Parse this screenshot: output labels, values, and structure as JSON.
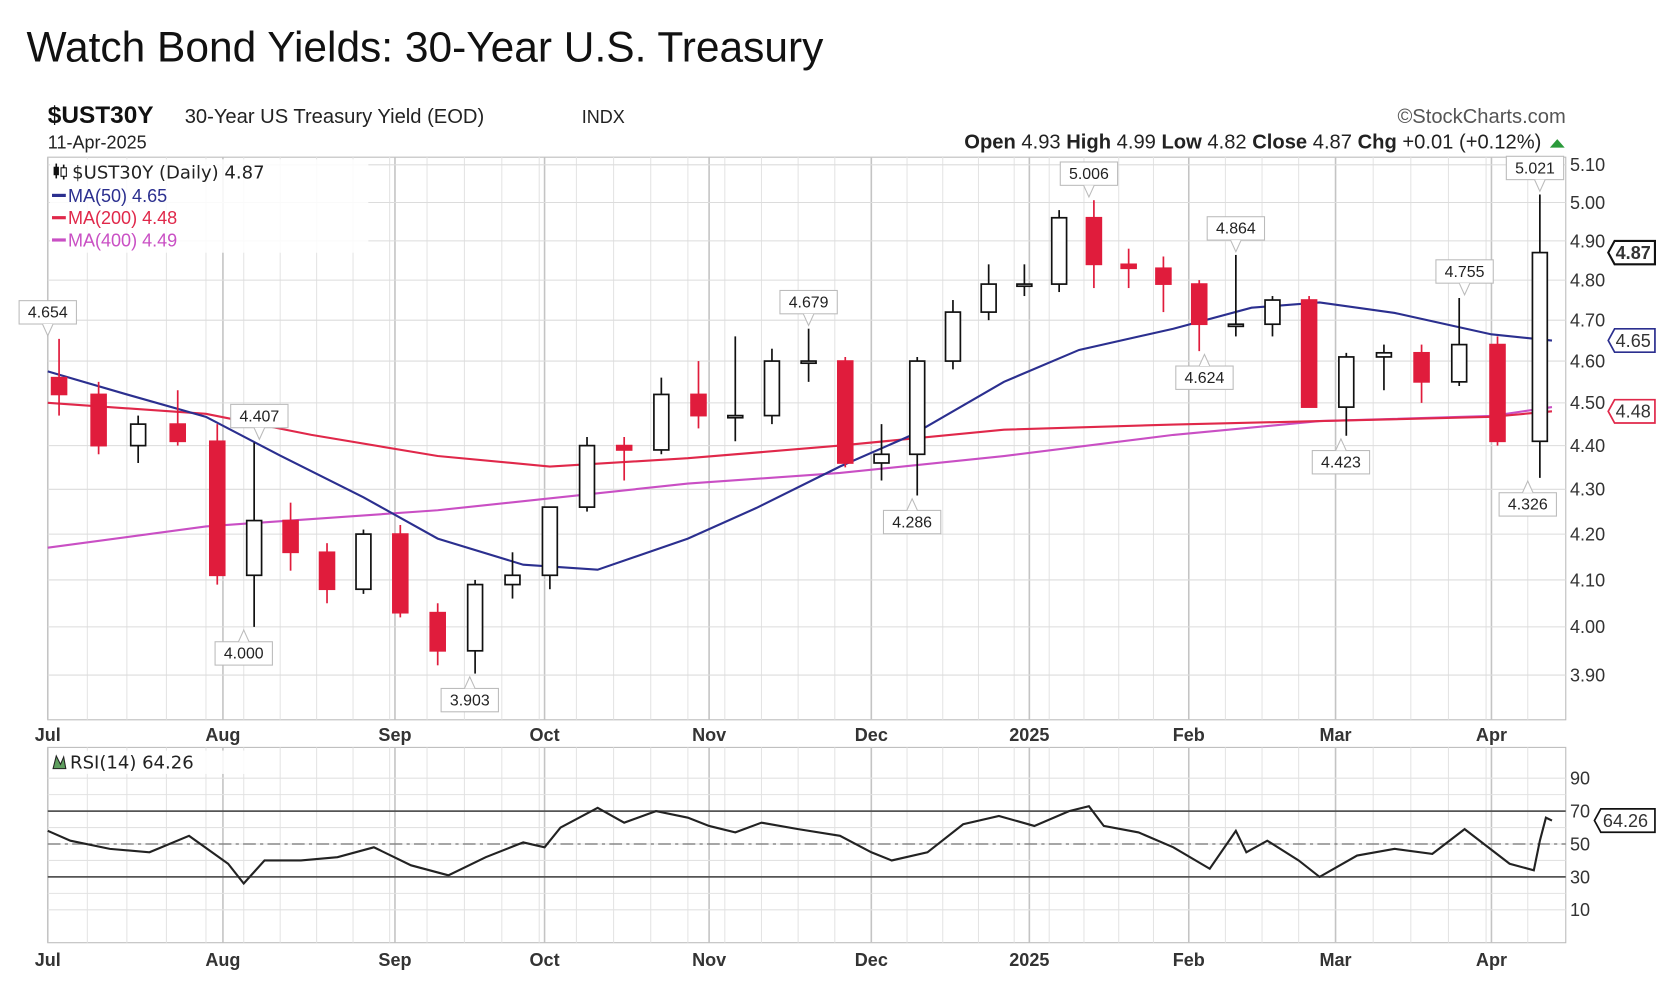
{
  "title": "Watch Bond Yields: 30-Year U.S. Treasury",
  "header": {
    "symbol": "$UST30Y",
    "description": "30-Year US Treasury Yield (EOD)",
    "exchange": "INDX",
    "date": "11-Apr-2025",
    "watermark": "©StockCharts.com",
    "ohlc": {
      "open_label": "Open",
      "open": "4.93",
      "high_label": "High",
      "high": "4.99",
      "low_label": "Low",
      "low": "4.82",
      "close_label": "Close",
      "close": "4.87",
      "chg_label": "Chg",
      "chg": "+0.01 (+0.12%)",
      "direction": "up"
    }
  },
  "legend": {
    "price": "$UST30Y (Daily) 4.87",
    "ma50": "MA(50) 4.65",
    "ma200": "MA(200) 4.48",
    "ma400": "MA(400) 4.49",
    "rsi": "RSI(14) 64.26"
  },
  "colors": {
    "up_candle": "#ffffff",
    "down_candle": "#e01c3c",
    "ma50": "#2b2f8f",
    "ma200": "#e0284a",
    "ma400": "#c94fc4",
    "rsi": "#222222",
    "positive_change": "#2a9a3a"
  },
  "chart_data": [
    {
      "type": "candlestick",
      "title": "$UST30Y (Daily)",
      "y_scale": "log",
      "ylim": [
        3.85,
        5.12
      ],
      "grid": true,
      "legend_position": "top-left",
      "yticks": [
        "3.90",
        "4.00",
        "4.10",
        "4.20",
        "4.30",
        "4.40",
        "4.50",
        "4.60",
        "4.70",
        "4.80",
        "4.90",
        "5.00",
        "5.10"
      ],
      "xticks": [
        {
          "date": "2024-07-01",
          "label": "Jul"
        },
        {
          "date": "2024-08-01",
          "label": "Aug"
        },
        {
          "date": "2024-09-03",
          "label": "Sep"
        },
        {
          "date": "2024-10-01",
          "label": "Oct"
        },
        {
          "date": "2024-11-01",
          "label": "Nov"
        },
        {
          "date": "2024-12-02",
          "label": "Dec"
        },
        {
          "date": "2025-01-02",
          "label": "2025"
        },
        {
          "date": "2025-02-03",
          "label": "Feb"
        },
        {
          "date": "2025-03-03",
          "label": "Mar"
        },
        {
          "date": "2025-04-01",
          "label": "Apr"
        }
      ],
      "ohlc_columns": [
        "week_ending",
        "open",
        "high",
        "low",
        "close"
      ],
      "ohlc": [
        [
          "2024-07-05",
          4.56,
          4.654,
          4.47,
          4.52
        ],
        [
          "2024-07-12",
          4.52,
          4.55,
          4.38,
          4.4
        ],
        [
          "2024-07-19",
          4.4,
          4.47,
          4.36,
          4.45
        ],
        [
          "2024-07-26",
          4.45,
          4.53,
          4.4,
          4.41
        ],
        [
          "2024-08-02",
          4.41,
          4.45,
          4.09,
          4.11
        ],
        [
          "2024-08-09",
          4.11,
          4.407,
          4.0,
          4.23
        ],
        [
          "2024-08-16",
          4.23,
          4.27,
          4.12,
          4.16
        ],
        [
          "2024-08-23",
          4.16,
          4.18,
          4.05,
          4.08
        ],
        [
          "2024-08-30",
          4.08,
          4.21,
          4.07,
          4.2
        ],
        [
          "2024-09-06",
          4.2,
          4.22,
          4.02,
          4.03
        ],
        [
          "2024-09-13",
          4.03,
          4.05,
          3.92,
          3.95
        ],
        [
          "2024-09-20",
          3.95,
          4.1,
          3.903,
          4.09
        ],
        [
          "2024-09-27",
          4.09,
          4.16,
          4.06,
          4.11
        ],
        [
          "2024-10-04",
          4.11,
          4.26,
          4.08,
          4.26
        ],
        [
          "2024-10-11",
          4.26,
          4.42,
          4.25,
          4.4
        ],
        [
          "2024-10-18",
          4.4,
          4.42,
          4.32,
          4.39
        ],
        [
          "2024-10-25",
          4.39,
          4.56,
          4.38,
          4.52
        ],
        [
          "2024-11-01",
          4.52,
          4.6,
          4.44,
          4.47
        ],
        [
          "2024-11-08",
          4.47,
          4.66,
          4.41,
          4.47
        ],
        [
          "2024-11-15",
          4.47,
          4.63,
          4.45,
          4.6
        ],
        [
          "2024-11-22",
          4.6,
          4.679,
          4.55,
          4.6
        ],
        [
          "2024-11-29",
          4.6,
          4.61,
          4.35,
          4.36
        ],
        [
          "2024-12-06",
          4.36,
          4.45,
          4.32,
          4.38
        ],
        [
          "2024-12-13",
          4.38,
          4.61,
          4.286,
          4.6
        ],
        [
          "2024-12-20",
          4.6,
          4.75,
          4.58,
          4.72
        ],
        [
          "2024-12-27",
          4.72,
          4.84,
          4.7,
          4.79
        ],
        [
          "2025-01-03",
          4.79,
          4.84,
          4.76,
          4.79
        ],
        [
          "2025-01-10",
          4.79,
          4.98,
          4.77,
          4.96
        ],
        [
          "2025-01-17",
          4.96,
          5.006,
          4.78,
          4.84
        ],
        [
          "2025-01-24",
          4.84,
          4.88,
          4.78,
          4.83
        ],
        [
          "2025-01-31",
          4.83,
          4.86,
          4.72,
          4.79
        ],
        [
          "2025-02-07",
          4.79,
          4.8,
          4.624,
          4.69
        ],
        [
          "2025-02-14",
          4.69,
          4.864,
          4.66,
          4.69
        ],
        [
          "2025-02-21",
          4.69,
          4.76,
          4.66,
          4.75
        ],
        [
          "2025-02-28",
          4.75,
          4.76,
          4.5,
          4.49
        ],
        [
          "2025-03-07",
          4.49,
          4.62,
          4.423,
          4.61
        ],
        [
          "2025-03-14",
          4.61,
          4.64,
          4.53,
          4.62
        ],
        [
          "2025-03-21",
          4.62,
          4.64,
          4.5,
          4.55
        ],
        [
          "2025-03-28",
          4.55,
          4.755,
          4.54,
          4.64
        ],
        [
          "2025-04-04",
          4.64,
          4.66,
          4.4,
          4.41
        ],
        [
          "2025-04-11",
          4.41,
          5.021,
          4.326,
          4.87
        ]
      ],
      "series": [
        {
          "name": "MA(50)",
          "color": "#2b2f8f",
          "points": [
            [
              "2024-07-01",
              4.575
            ],
            [
              "2024-07-15",
              4.52
            ],
            [
              "2024-07-29",
              4.467
            ],
            [
              "2024-08-12",
              4.377
            ],
            [
              "2024-08-28",
              4.282
            ],
            [
              "2024-09-11",
              4.19
            ],
            [
              "2024-09-27",
              4.133
            ],
            [
              "2024-10-11",
              4.122
            ],
            [
              "2024-10-28",
              4.19
            ],
            [
              "2024-11-10",
              4.258
            ],
            [
              "2024-11-26",
              4.352
            ],
            [
              "2024-12-10",
              4.425
            ],
            [
              "2024-12-28",
              4.55
            ],
            [
              "2025-01-12",
              4.627
            ],
            [
              "2025-01-31",
              4.679
            ],
            [
              "2025-02-15",
              4.731
            ],
            [
              "2025-02-28",
              4.744
            ],
            [
              "2025-03-14",
              4.718
            ],
            [
              "2025-04-01",
              4.665
            ],
            [
              "2025-04-11",
              4.65
            ]
          ]
        },
        {
          "name": "MA(200)",
          "color": "#e0284a",
          "points": [
            [
              "2024-07-01",
              4.5
            ],
            [
              "2024-07-29",
              4.474
            ],
            [
              "2024-08-18",
              4.425
            ],
            [
              "2024-09-11",
              4.376
            ],
            [
              "2024-10-02",
              4.352
            ],
            [
              "2024-10-28",
              4.371
            ],
            [
              "2024-11-26",
              4.4
            ],
            [
              "2024-12-28",
              4.437
            ],
            [
              "2025-01-31",
              4.449
            ],
            [
              "2025-02-28",
              4.457
            ],
            [
              "2025-04-01",
              4.467
            ],
            [
              "2025-04-11",
              4.48
            ]
          ]
        },
        {
          "name": "MA(400)",
          "color": "#c94fc4",
          "points": [
            [
              "2024-07-01",
              4.17
            ],
            [
              "2024-07-29",
              4.217
            ],
            [
              "2024-09-11",
              4.253
            ],
            [
              "2024-10-28",
              4.313
            ],
            [
              "2024-11-26",
              4.337
            ],
            [
              "2024-12-28",
              4.376
            ],
            [
              "2025-01-31",
              4.425
            ],
            [
              "2025-02-28",
              4.457
            ],
            [
              "2025-04-01",
              4.469
            ],
            [
              "2025-04-11",
              4.49
            ]
          ]
        }
      ],
      "annotations": [
        {
          "date": "2024-07-01",
          "text": "4.654",
          "value": 4.654,
          "position": "above"
        },
        {
          "date": "2024-08-05",
          "text": "4.000",
          "value": 4.0,
          "position": "below"
        },
        {
          "date": "2024-08-08",
          "text": "4.407",
          "value": 4.407,
          "position": "above"
        },
        {
          "date": "2024-09-17",
          "text": "3.903",
          "value": 3.903,
          "position": "below"
        },
        {
          "date": "2024-11-20",
          "text": "4.679",
          "value": 4.679,
          "position": "above"
        },
        {
          "date": "2024-12-10",
          "text": "4.286",
          "value": 4.286,
          "position": "below"
        },
        {
          "date": "2025-01-14",
          "text": "5.006",
          "value": 5.006,
          "position": "above"
        },
        {
          "date": "2025-02-06",
          "text": "4.624",
          "value": 4.624,
          "position": "below"
        },
        {
          "date": "2025-02-12",
          "text": "4.864",
          "value": 4.864,
          "position": "above"
        },
        {
          "date": "2025-03-04",
          "text": "4.423",
          "value": 4.423,
          "position": "below"
        },
        {
          "date": "2025-03-27",
          "text": "4.755",
          "value": 4.755,
          "position": "above"
        },
        {
          "date": "2025-04-07",
          "text": "4.326",
          "value": 4.326,
          "position": "below"
        },
        {
          "date": "2025-04-09",
          "text": "5.021",
          "value": 5.021,
          "position": "above"
        }
      ],
      "last_value_tags": [
        {
          "text": "4.87",
          "value": 4.87,
          "color": "#111111"
        },
        {
          "text": "4.65",
          "value": 4.65,
          "color": "#2b2f8f"
        },
        {
          "text": "4.48",
          "value": 4.48,
          "color": "#e0284a"
        }
      ]
    },
    {
      "type": "line",
      "title": "RSI(14)",
      "ylim": [
        0,
        100
      ],
      "yticks": [
        "10",
        "30",
        "50",
        "70",
        "90"
      ],
      "reference_lines": [
        30,
        50,
        70
      ],
      "grid": true,
      "points": [
        [
          "2024-07-01",
          58
        ],
        [
          "2024-07-05",
          52
        ],
        [
          "2024-07-12",
          47
        ],
        [
          "2024-07-19",
          45
        ],
        [
          "2024-07-26",
          55
        ],
        [
          "2024-08-02",
          38
        ],
        [
          "2024-08-05",
          26
        ],
        [
          "2024-08-09",
          40
        ],
        [
          "2024-08-16",
          40
        ],
        [
          "2024-08-23",
          42
        ],
        [
          "2024-08-30",
          48
        ],
        [
          "2024-09-06",
          37
        ],
        [
          "2024-09-13",
          31
        ],
        [
          "2024-09-20",
          42
        ],
        [
          "2024-09-27",
          51
        ],
        [
          "2024-10-01",
          48
        ],
        [
          "2024-10-04",
          60
        ],
        [
          "2024-10-11",
          72
        ],
        [
          "2024-10-16",
          63
        ],
        [
          "2024-10-22",
          70
        ],
        [
          "2024-10-28",
          66
        ],
        [
          "2024-11-01",
          61
        ],
        [
          "2024-11-06",
          57
        ],
        [
          "2024-11-11",
          63
        ],
        [
          "2024-11-18",
          59
        ],
        [
          "2024-11-26",
          55
        ],
        [
          "2024-12-02",
          45
        ],
        [
          "2024-12-06",
          40
        ],
        [
          "2024-12-13",
          45
        ],
        [
          "2024-12-20",
          62
        ],
        [
          "2024-12-27",
          67
        ],
        [
          "2025-01-03",
          61
        ],
        [
          "2025-01-10",
          70
        ],
        [
          "2025-01-14",
          73
        ],
        [
          "2025-01-17",
          61
        ],
        [
          "2025-01-24",
          57
        ],
        [
          "2025-01-31",
          48
        ],
        [
          "2025-02-07",
          35
        ],
        [
          "2025-02-12",
          58
        ],
        [
          "2025-02-14",
          45
        ],
        [
          "2025-02-18",
          52
        ],
        [
          "2025-02-24",
          40
        ],
        [
          "2025-02-28",
          30
        ],
        [
          "2025-03-07",
          43
        ],
        [
          "2025-03-14",
          47
        ],
        [
          "2025-03-21",
          44
        ],
        [
          "2025-03-27",
          59
        ],
        [
          "2025-04-04",
          38
        ],
        [
          "2025-04-08",
          34
        ],
        [
          "2025-04-09",
          52
        ],
        [
          "2025-04-10",
          66
        ],
        [
          "2025-04-11",
          64.26
        ]
      ],
      "last_value_tag": "64.26",
      "xticks": [
        "Jul",
        "Aug",
        "Sep",
        "Oct",
        "Nov",
        "Dec",
        "2025",
        "Feb",
        "Mar",
        "Apr"
      ]
    }
  ]
}
